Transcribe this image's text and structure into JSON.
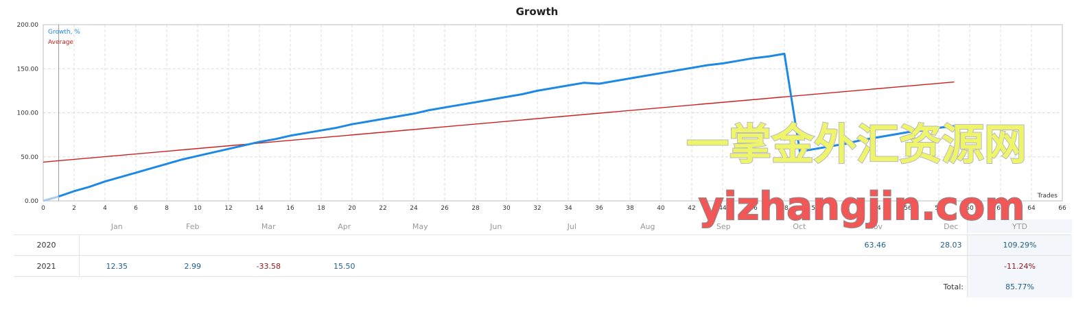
{
  "page": {
    "watermark_cn": "一掌金外汇资源网",
    "watermark_url": "yizhangjin.com"
  },
  "chart_data": {
    "type": "line",
    "title": "Growth",
    "xlabel": "Trades",
    "ylabel": "",
    "xlim": [
      0,
      66
    ],
    "ylim": [
      0,
      200
    ],
    "x_ticks": [
      0,
      2,
      4,
      6,
      8,
      10,
      12,
      14,
      16,
      18,
      20,
      22,
      24,
      26,
      28,
      30,
      32,
      34,
      36,
      38,
      40,
      42,
      44,
      46,
      48,
      50,
      52,
      54,
      56,
      58,
      60,
      62,
      64,
      66
    ],
    "y_ticks": [
      "0.00",
      "50.00",
      "100.00",
      "150.00",
      "200.00"
    ],
    "grid": true,
    "legend_position": "top-left",
    "series": [
      {
        "name": "Growth, %",
        "color": "#1e88e5",
        "x": [
          0,
          1,
          2,
          3,
          4,
          5,
          6,
          7,
          8,
          9,
          10,
          11,
          12,
          13,
          14,
          15,
          16,
          17,
          18,
          19,
          20,
          21,
          22,
          23,
          24,
          25,
          26,
          27,
          28,
          29,
          30,
          31,
          32,
          33,
          34,
          35,
          36,
          37,
          38,
          39,
          40,
          41,
          42,
          43,
          44,
          45,
          46,
          47,
          48,
          49,
          50,
          51,
          52,
          53,
          54,
          55,
          56,
          57,
          58,
          59
        ],
        "y": [
          0,
          5,
          11,
          16,
          22,
          27,
          32,
          37,
          42,
          47,
          51,
          55,
          59,
          63,
          67,
          70,
          74,
          77,
          80,
          83,
          87,
          90,
          93,
          96,
          99,
          103,
          106,
          109,
          112,
          115,
          118,
          121,
          125,
          128,
          131,
          134,
          133,
          136,
          139,
          142,
          145,
          148,
          151,
          154,
          156,
          159,
          162,
          164,
          167,
          56,
          59,
          62,
          65,
          69,
          72,
          75,
          78,
          80,
          83,
          85
        ]
      },
      {
        "name": "Average",
        "color": "#cc1f1f",
        "x": [
          0,
          59
        ],
        "y": [
          44,
          135
        ]
      }
    ]
  },
  "table": {
    "months": [
      "Jan",
      "Feb",
      "Mar",
      "Apr",
      "May",
      "Jun",
      "Jul",
      "Aug",
      "Sep",
      "Oct",
      "Nov",
      "Dec"
    ],
    "ytd_label": "YTD",
    "rows": [
      {
        "year": "2020",
        "values": [
          "",
          "",
          "",
          "",
          "",
          "",
          "",
          "",
          "",
          "",
          "63.46",
          "28.03"
        ],
        "ytd": "109.29%"
      },
      {
        "year": "2021",
        "values": [
          "12.35",
          "2.99",
          "-33.58",
          "15.50",
          "",
          "",
          "",
          "",
          "",
          "",
          "",
          ""
        ],
        "ytd": "-11.24%"
      }
    ],
    "total_label": "Total:",
    "total_value": "85.77%"
  }
}
